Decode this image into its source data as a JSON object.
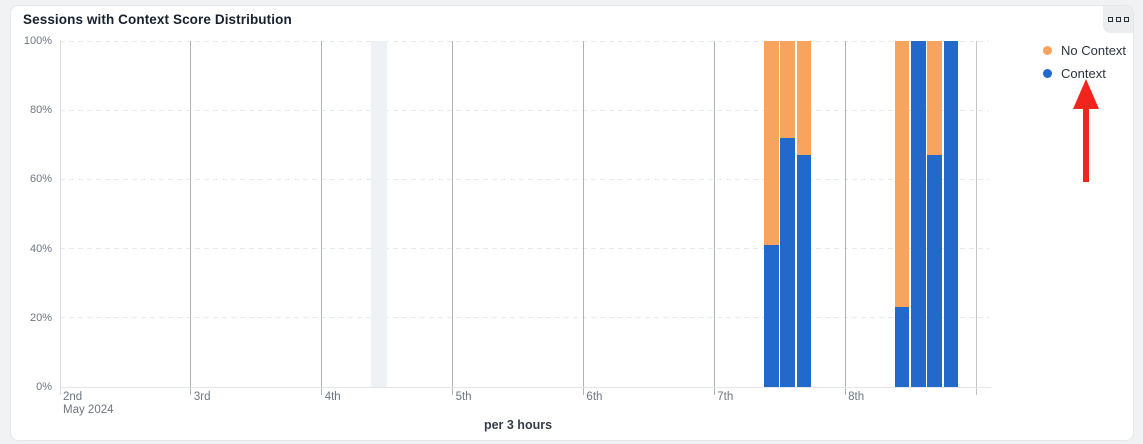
{
  "card": {
    "title": "Sessions with Context Score Distribution",
    "menu_tooltip": "widget options"
  },
  "chart_data": {
    "type": "bar",
    "stacked": true,
    "title": "Sessions with Context Score Distribution",
    "unit_label": "per 3 hours",
    "x_axis": {
      "tick_labels": [
        "2nd",
        "3rd",
        "4th",
        "5th",
        "6th",
        "7th",
        "8th"
      ],
      "sub_label": "May 2024",
      "domain_days": 7
    },
    "y_axis": {
      "tick_labels": [
        "0%",
        "20%",
        "40%",
        "60%",
        "80%",
        "100%"
      ],
      "min": 0,
      "max": 100,
      "grid": "dashed"
    },
    "legend": [
      {
        "key": "no_context",
        "label": "No Context",
        "color": "#f7a45e"
      },
      {
        "key": "context",
        "label": "Context",
        "color": "#2368cb"
      }
    ],
    "legend_position": "right-top",
    "bars": [
      {
        "slot": "May 7 09:00",
        "day_offset": 5.375,
        "context_pct": 41,
        "no_context_pct": 59
      },
      {
        "slot": "May 7 12:00",
        "day_offset": 5.5,
        "context_pct": 72,
        "no_context_pct": 28
      },
      {
        "slot": "May 7 15:00",
        "day_offset": 5.625,
        "context_pct": 67,
        "no_context_pct": 33
      },
      {
        "slot": "May 8 09:00",
        "day_offset": 6.375,
        "context_pct": 23,
        "no_context_pct": 77
      },
      {
        "slot": "May 8 12:00",
        "day_offset": 6.5,
        "context_pct": 100,
        "no_context_pct": 0
      },
      {
        "slot": "May 8 15:00",
        "day_offset": 6.625,
        "context_pct": 67,
        "no_context_pct": 33
      },
      {
        "slot": "May 8 18:00",
        "day_offset": 6.75,
        "context_pct": 100,
        "no_context_pct": 0
      }
    ],
    "slot_width_days": 0.125,
    "highlight_band": {
      "slot": "May 4 09:00",
      "day_offset": 2.375,
      "width_days": 0.125,
      "color": "#eef2f6"
    }
  },
  "annotation": {
    "type": "red-up-arrow",
    "points_at": "Context legend item",
    "color": "#f1251b"
  },
  "colors": {
    "context": "#2368cb",
    "no_context": "#f7a45e",
    "day_gridline": "#aeb3bb",
    "edge_gridline": "#d9dce0",
    "end_gridline": "#c2c6cc",
    "card_border": "#e4e6ea",
    "page_bg": "#f1f2f4"
  }
}
